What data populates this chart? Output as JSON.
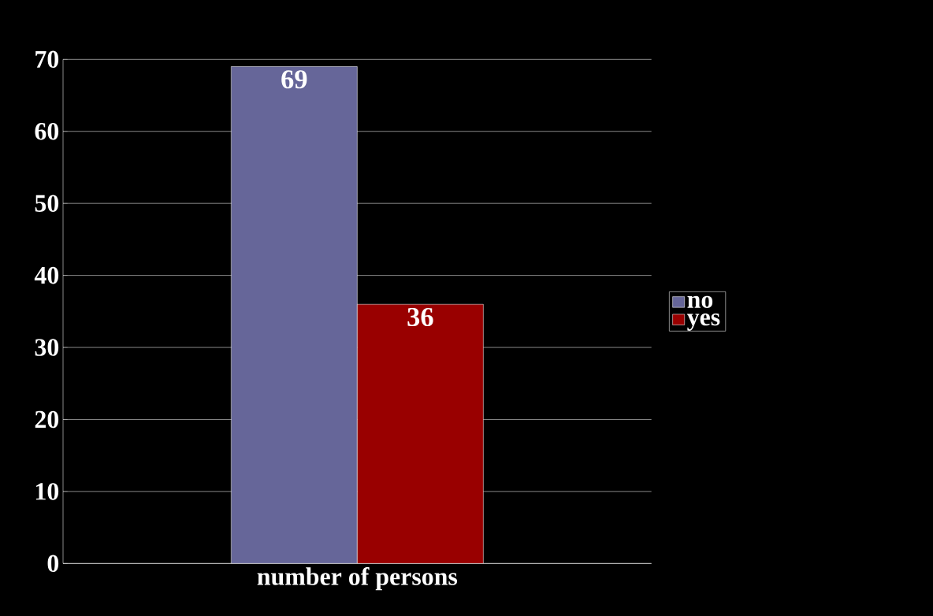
{
  "chart_data": {
    "type": "bar",
    "xlabel": "number of persons",
    "categories": [
      null
    ],
    "series": [
      {
        "name": "no",
        "color": "#666699",
        "values": [
          69
        ]
      },
      {
        "name": "yes",
        "color": "#990000",
        "values": [
          36
        ]
      }
    ],
    "ylim": [
      0,
      70
    ],
    "yticks": [
      0,
      10,
      20,
      30,
      40,
      50,
      60,
      70
    ],
    "grid": "y",
    "legend": "right",
    "data_labels": true
  }
}
